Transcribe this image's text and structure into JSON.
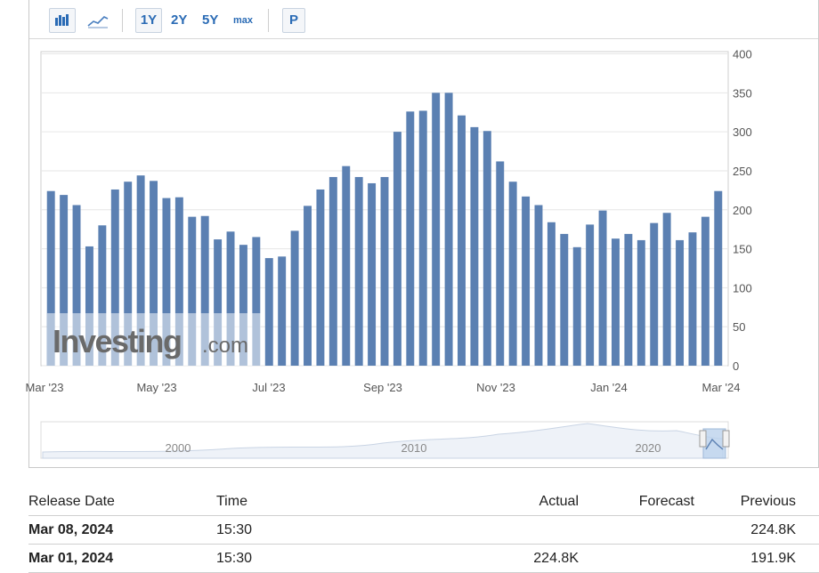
{
  "toolbar": {
    "bar_chart_icon": "bar-chart-icon",
    "line_chart_icon": "line-chart-icon",
    "ranges": [
      "1Y",
      "2Y",
      "5Y",
      "max"
    ],
    "p_label": "P"
  },
  "watermark": {
    "brand": "Investing",
    "suffix": ".com"
  },
  "chart_data": {
    "type": "bar",
    "color": "#5b80b2",
    "ylim": [
      0,
      400
    ],
    "yticks": [
      "400",
      "350",
      "300",
      "250",
      "200",
      "150",
      "100",
      "50",
      "0"
    ],
    "xticks": [
      "Mar '23",
      "May '23",
      "Jul '23",
      "Sep '23",
      "Nov '23",
      "Jan '24",
      "Mar '24"
    ],
    "values": [
      224,
      219,
      206,
      153,
      180,
      226,
      236,
      244,
      237,
      215,
      216,
      191,
      192,
      162,
      172,
      155,
      165,
      138,
      140,
      173,
      205,
      226,
      242,
      256,
      242,
      234,
      242,
      300,
      326,
      327,
      350,
      350,
      321,
      306,
      301,
      262,
      236,
      217,
      206,
      184,
      169,
      152,
      181,
      199,
      163,
      169,
      161,
      183,
      196,
      161,
      171,
      191,
      224
    ],
    "navigator": {
      "labels": [
        "2000",
        "2010",
        "2020"
      ]
    }
  },
  "table": {
    "headers": {
      "release_date": "Release Date",
      "time": "Time",
      "actual": "Actual",
      "forecast": "Forecast",
      "previous": "Previous"
    },
    "rows": [
      {
        "release_date": "Mar 08, 2024",
        "time": "15:30",
        "actual": "",
        "forecast": "",
        "previous": "224.8K"
      },
      {
        "release_date": "Mar 01, 2024",
        "time": "15:30",
        "actual": "224.8K",
        "forecast": "",
        "previous": "191.9K"
      }
    ]
  }
}
